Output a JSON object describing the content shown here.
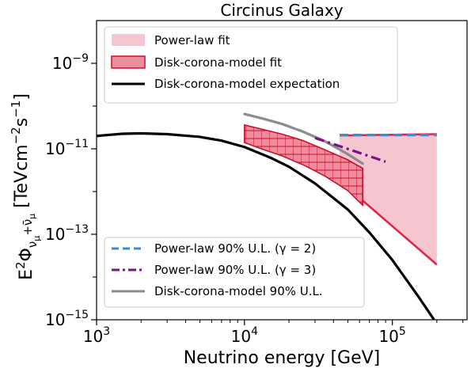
{
  "chart_data": {
    "type": "line",
    "title": "Circinus Galaxy",
    "xlabel": "Neutrino energy [GeV]",
    "ylabel_parts": [
      "E",
      "2",
      "Φ",
      "ν",
      "μ",
      "+",
      "ν̄",
      "μ",
      " [TeVcm",
      "−2",
      "s",
      "−1",
      "]"
    ],
    "xscale": "log",
    "yscale": "log",
    "xlim": [
      1000,
      320000
    ],
    "ylim": [
      1e-15,
      1e-08
    ],
    "x_ticks": [
      {
        "value": 1000,
        "base": "10",
        "exp": "3"
      },
      {
        "value": 10000,
        "base": "10",
        "exp": "4"
      },
      {
        "value": 100000,
        "base": "10",
        "exp": "5"
      }
    ],
    "y_ticks": [
      {
        "value": 1e-09,
        "base": "10",
        "exp": "−9"
      },
      {
        "value": 1e-11,
        "base": "10",
        "exp": "−11"
      },
      {
        "value": 1e-13,
        "base": "10",
        "exp": "−13"
      },
      {
        "value": 1e-15,
        "base": "10",
        "exp": "−15"
      }
    ],
    "colors": {
      "powerlaw_fill": "#f6c6d0",
      "powerlaw_line": "#e02548",
      "diskcorona_fill": "#ec8c9d",
      "diskcorona_edge": "#c8102e",
      "expectation": "#000000",
      "ul_gamma2": "#2b91e8",
      "ul_gamma3": "#7b0f8c",
      "ul_diskcorona": "#8c8c8c"
    },
    "series": [
      {
        "name": "Power-law fit",
        "kind": "band",
        "x": [
          44000,
          200000
        ],
        "upper": [
          2.05e-11,
          2.2e-11
        ],
        "lower": [
          1.8e-12,
          1.95e-14
        ]
      },
      {
        "name": "Disk-corona-model fit",
        "kind": "band",
        "x": [
          10000,
          13000,
          18000,
          25000,
          35000,
          50000,
          63000
        ],
        "upper": [
          3.6e-11,
          2.9e-11,
          2.2e-11,
          1.55e-11,
          9.5e-12,
          5.5e-12,
          3.5e-12
        ],
        "lower": [
          1.4e-11,
          1e-11,
          6.8e-12,
          4.2e-12,
          2.3e-12,
          1.05e-12,
          4.8e-13
        ]
      },
      {
        "name": "Disk-corona-model expectation",
        "kind": "line",
        "x": [
          1000,
          1500,
          2000,
          3000,
          5000,
          7000,
          10000,
          15000,
          20000,
          30000,
          50000,
          70000,
          100000,
          150000,
          200000,
          230000
        ],
        "y": [
          2e-11,
          2.25e-11,
          2.3e-11,
          2.2e-11,
          1.9e-11,
          1.55e-11,
          1.1e-11,
          6.2e-12,
          3.8e-12,
          1.55e-12,
          3.8e-13,
          1.1e-13,
          2.5e-14,
          3.5e-15,
          8e-16,
          3e-16
        ]
      },
      {
        "name": "Power-law 90% U.L. (γ = 2)",
        "kind": "line",
        "x": [
          44000,
          200000
        ],
        "y": [
          2.1e-11,
          2.1e-11
        ]
      },
      {
        "name": "Power-law 90% U.L. (γ = 3)",
        "kind": "line",
        "x": [
          30000,
          90000
        ],
        "y": [
          1.8e-11,
          5e-12
        ]
      },
      {
        "name": "Disk-corona-model 90% U.L.",
        "kind": "line",
        "x": [
          10000,
          13000,
          18000,
          25000,
          35000,
          50000,
          63000
        ],
        "y": [
          6.5e-11,
          5.2e-11,
          3.8e-11,
          2.5e-11,
          1.5e-11,
          7.5e-12,
          4.5e-12
        ]
      }
    ],
    "legend_top": {
      "position": "top-left",
      "entries": [
        "Power-law fit",
        "Disk-corona-model fit",
        "Disk-corona-model expectation"
      ]
    },
    "legend_bottom": {
      "position": "bottom-right",
      "entries": [
        "Power-law 90% U.L. (γ = 2)",
        "Power-law 90% U.L. (γ = 3)",
        "Disk-corona-model 90% U.L."
      ]
    }
  }
}
